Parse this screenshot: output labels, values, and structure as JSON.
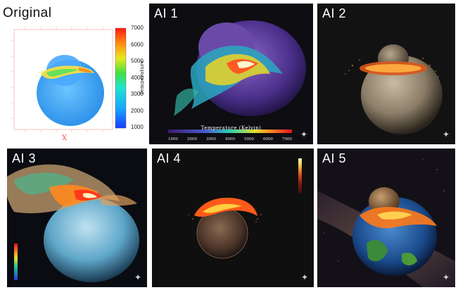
{
  "panels": {
    "original": {
      "title": "Original",
      "x_axis_label": "X",
      "colorbar_label": "Temperature",
      "colorbar_ticks": [
        "7000",
        "6000",
        "5000",
        "4000",
        "3000",
        "2000",
        "1000"
      ]
    },
    "ai1": {
      "title": "AI 1",
      "colorbar_title": "Temperature (Kelvin)",
      "colorbar_ticks": [
        "1000",
        "2000",
        "3000",
        "4000",
        "5000",
        "6000",
        "7000"
      ]
    },
    "ai2": {
      "title": "AI 2"
    },
    "ai3": {
      "title": "AI 3"
    },
    "ai4": {
      "title": "AI 4"
    },
    "ai5": {
      "title": "AI 5"
    }
  },
  "icons": {
    "watermark": "sparkle-icon"
  }
}
